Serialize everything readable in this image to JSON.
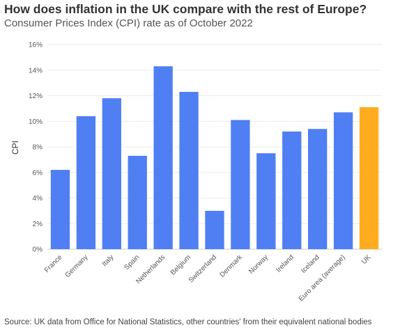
{
  "title": "How does inflation in the UK compare with the rest of Europe?",
  "subtitle": "Consumer Prices Index (CPI) rate as of October 2022",
  "source": "Source: UK data from Office for National Statistics, other countries' from their equivalent national bodies",
  "chart_data": {
    "type": "bar",
    "ylabel": "CPI",
    "xlabel": "",
    "ylim": [
      0,
      16
    ],
    "y_ticks": [
      "0%",
      "2%",
      "4%",
      "6%",
      "8%",
      "10%",
      "12%",
      "14%",
      "16%"
    ],
    "grid": true,
    "categories": [
      "France",
      "Germany",
      "Italy",
      "Spain",
      "Netherlands",
      "Belgium",
      "Switzerland",
      "Denmark",
      "Norway",
      "Ireland",
      "Iceland",
      "Euro area (average)",
      "UK"
    ],
    "values": [
      6.2,
      10.4,
      11.8,
      7.3,
      14.3,
      12.3,
      3.0,
      10.1,
      7.5,
      9.2,
      9.4,
      10.7,
      11.1
    ],
    "colors": {
      "default": "#4f7ff2",
      "UK": "#ffad1f"
    }
  }
}
